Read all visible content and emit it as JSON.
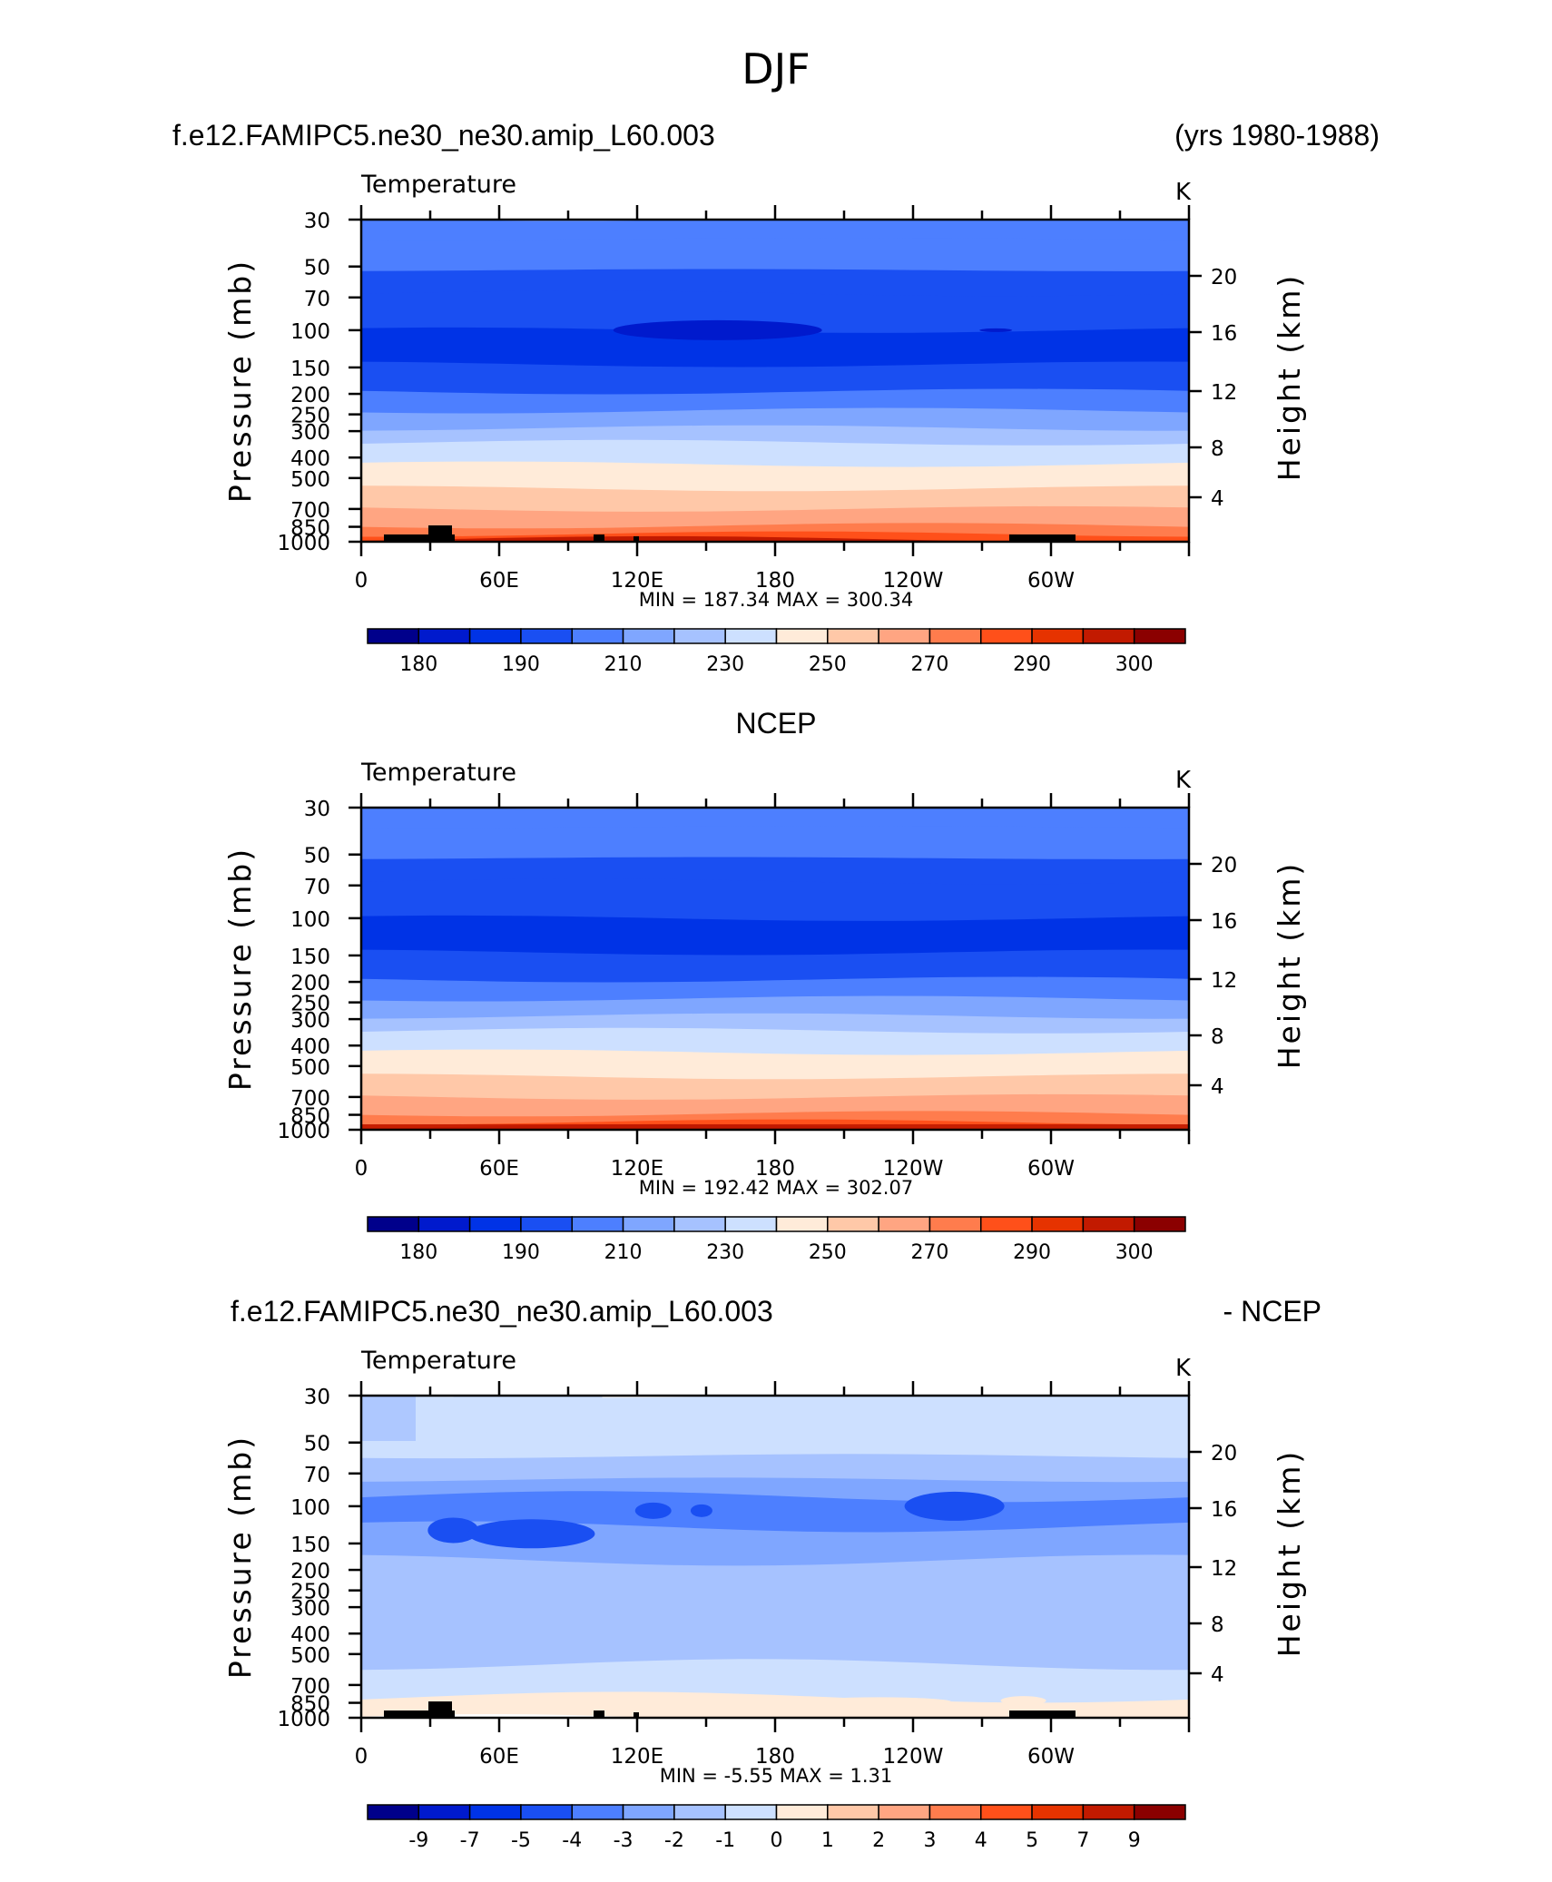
{
  "figure_title": "DJF",
  "colors": {
    "temperature_fill": [
      "#00008b",
      "#001acd",
      "#0033e6",
      "#1a4ff2",
      "#4d7fff",
      "#7fa6ff",
      "#a6c2ff",
      "#cde0ff",
      "#ffebd9",
      "#ffc8a8",
      "#ffa582",
      "#ff7c4d",
      "#ff501a",
      "#e63300",
      "#c21a00",
      "#8b0000"
    ],
    "difference_fill": [
      "#00008b",
      "#001acd",
      "#0033e6",
      "#1a4ff2",
      "#4d7fff",
      "#7fa6ff",
      "#a6c2ff",
      "#cde0ff",
      "#ffebd9",
      "#ffc8a8",
      "#ffa582",
      "#ff7c4d",
      "#ff501a",
      "#e63300",
      "#c21a00",
      "#8b0000"
    ],
    "topography": "#000000"
  },
  "chart_data": [
    {
      "type": "heatmap",
      "title_left": "f.e12.FAMIPC5.ne30_ne30.amip_L60.003",
      "title_right": "(yrs 1980-1988)",
      "variable": "Temperature",
      "units": "K",
      "ylabel": "Pressure (mb)",
      "ylabel_right": "Height (km)",
      "x_ticks": [
        "0",
        "60E",
        "120E",
        "180",
        "120W",
        "60W"
      ],
      "y_ticks": [
        "30",
        "50",
        "70",
        "100",
        "150",
        "200",
        "250",
        "300",
        "400",
        "500",
        "700",
        "850",
        "1000"
      ],
      "y_ticks_right": [
        "20",
        "16",
        "12",
        "8",
        "4"
      ],
      "stats_text": "MIN =  187.34   MAX =  300.34",
      "min": 187.34,
      "max": 300.34,
      "colorbar_labels": [
        "180",
        "190",
        "210",
        "230",
        "250",
        "270",
        "290",
        "300"
      ],
      "band_levels": [
        210,
        210,
        200,
        200,
        190,
        200,
        210,
        220,
        230,
        240,
        250,
        260,
        270,
        280,
        290,
        300
      ],
      "band_pressure_bounds": [
        30,
        37,
        52,
        67,
        100,
        145,
        195,
        240,
        290,
        340,
        430,
        560,
        700,
        840,
        920,
        970,
        1000
      ],
      "notes_cold_core": "coldest (<190 K) lens near 100 mb around 120E-180"
    },
    {
      "type": "heatmap",
      "title_center": "NCEP",
      "variable": "Temperature",
      "units": "K",
      "ylabel": "Pressure (mb)",
      "ylabel_right": "Height (km)",
      "x_ticks": [
        "0",
        "60E",
        "120E",
        "180",
        "120W",
        "60W"
      ],
      "y_ticks": [
        "30",
        "50",
        "70",
        "100",
        "150",
        "200",
        "250",
        "300",
        "400",
        "500",
        "700",
        "850",
        "1000"
      ],
      "y_ticks_right": [
        "20",
        "16",
        "12",
        "8",
        "4"
      ],
      "stats_text": "MIN =  192.42   MAX =  302.07",
      "min": 192.42,
      "max": 302.07,
      "colorbar_labels": [
        "180",
        "190",
        "210",
        "230",
        "250",
        "270",
        "290",
        "300"
      ],
      "band_levels": [
        210,
        210,
        200,
        200,
        190,
        200,
        210,
        220,
        230,
        240,
        250,
        260,
        270,
        280,
        290,
        300
      ],
      "band_pressure_bounds": [
        30,
        37,
        52,
        67,
        100,
        145,
        195,
        240,
        290,
        340,
        430,
        560,
        700,
        840,
        920,
        970,
        1000
      ]
    },
    {
      "type": "heatmap",
      "title_left": "f.e12.FAMIPC5.ne30_ne30.amip_L60.003",
      "title_right": "- NCEP",
      "variable": "Temperature",
      "units": "K",
      "ylabel": "Pressure (mb)",
      "ylabel_right": "Height (km)",
      "x_ticks": [
        "0",
        "60E",
        "120E",
        "180",
        "120W",
        "60W"
      ],
      "y_ticks": [
        "30",
        "50",
        "70",
        "100",
        "150",
        "200",
        "250",
        "300",
        "400",
        "500",
        "700",
        "850",
        "1000"
      ],
      "y_ticks_right": [
        "20",
        "16",
        "12",
        "8",
        "4"
      ],
      "stats_text": "MIN =    -5.55   MAX =     1.31",
      "min": -5.55,
      "max": 1.31,
      "colorbar_labels": [
        "-9",
        "-7",
        "-5",
        "-4",
        "-3",
        "-2",
        "-1",
        "0",
        "1",
        "2",
        "3",
        "4",
        "5",
        "7",
        "9"
      ],
      "band_levels": [
        -1,
        -2,
        -3,
        -4,
        -3,
        -2,
        -1.5,
        -2,
        -1,
        0
      ],
      "band_pressure_bounds": [
        30,
        58,
        75,
        90,
        125,
        180,
        230,
        380,
        560,
        800,
        1000
      ],
      "notes": "strongest cooling (-4 to -5) near 100 mb; small positive (0-1) patches near 850 mb"
    }
  ]
}
